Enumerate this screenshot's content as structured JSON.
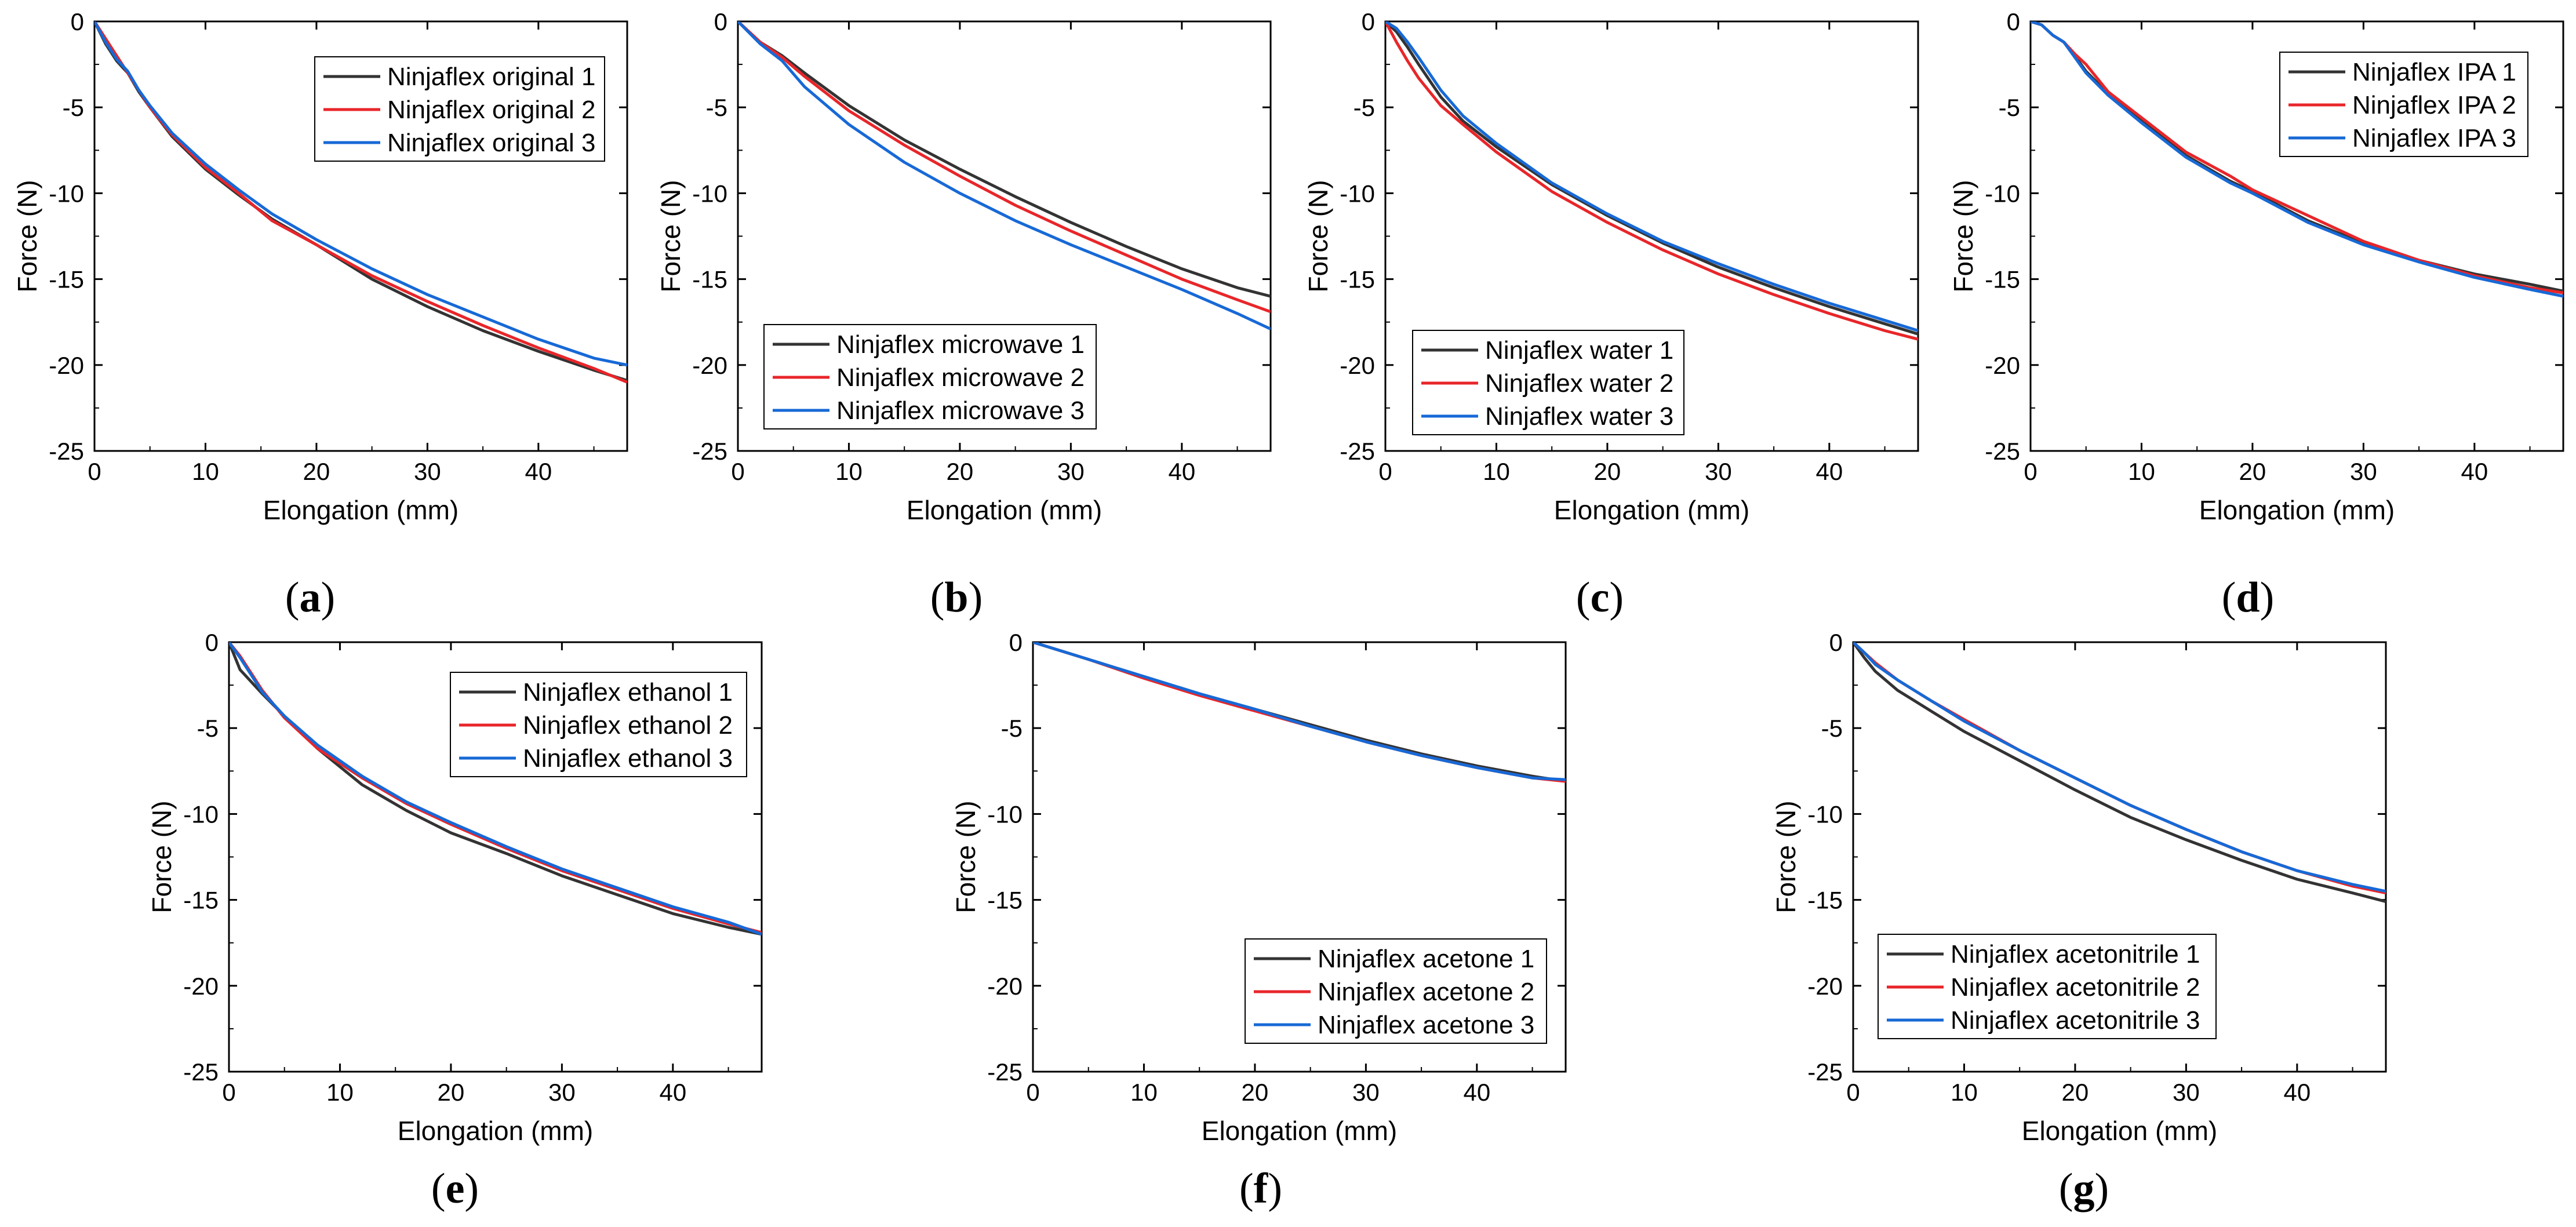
{
  "chart_data": [
    {
      "type": "line",
      "panel": "a",
      "xlabel": "Elongation (mm)",
      "ylabel": "Force (N)",
      "xlim": [
        0,
        48
      ],
      "ylim": [
        -25,
        0
      ],
      "xticks": [
        "0",
        "10",
        "20",
        "30",
        "40"
      ],
      "yticks": [
        "0",
        "-5",
        "-10",
        "-15",
        "-20",
        "-25"
      ],
      "series": [
        {
          "name": "Ninjaflex original 1",
          "color": "#333333",
          "x": [
            0,
            1,
            2,
            3,
            4,
            5,
            7,
            10,
            13,
            16,
            20,
            25,
            30,
            35,
            40,
            45,
            48
          ],
          "y": [
            0,
            -1.3,
            -2.3,
            -3.0,
            -4.1,
            -5.0,
            -6.7,
            -8.6,
            -10.1,
            -11.5,
            -13.0,
            -15.0,
            -16.6,
            -18.0,
            -19.2,
            -20.3,
            -20.9
          ]
        },
        {
          "name": "Ninjaflex original 2",
          "color": "#e8262a",
          "x": [
            0,
            1,
            2,
            3,
            4,
            5,
            7,
            10,
            13,
            16,
            20,
            25,
            30,
            35,
            40,
            45,
            48
          ],
          "y": [
            0,
            -1.0,
            -2.0,
            -3.0,
            -4.0,
            -5.0,
            -6.6,
            -8.5,
            -10.0,
            -11.6,
            -13.0,
            -14.8,
            -16.3,
            -17.7,
            -19.0,
            -20.2,
            -21.0
          ]
        },
        {
          "name": "Ninjaflex original 3",
          "color": "#1769d6",
          "x": [
            0,
            1,
            2,
            3,
            4,
            5,
            7,
            10,
            13,
            16,
            20,
            25,
            30,
            35,
            40,
            45,
            48
          ],
          "y": [
            0,
            -1.2,
            -2.2,
            -2.9,
            -4.0,
            -4.9,
            -6.5,
            -8.3,
            -9.8,
            -11.2,
            -12.7,
            -14.4,
            -15.9,
            -17.2,
            -18.5,
            -19.6,
            -20.0
          ]
        }
      ],
      "legend": "top-right"
    },
    {
      "type": "line",
      "panel": "b",
      "xlabel": "Elongation (mm)",
      "ylabel": "Force (N)",
      "xlim": [
        0,
        48
      ],
      "ylim": [
        -25,
        0
      ],
      "xticks": [
        "0",
        "10",
        "20",
        "30",
        "40"
      ],
      "yticks": [
        "0",
        "-5",
        "-10",
        "-15",
        "-20",
        "-25"
      ],
      "series": [
        {
          "name": "Ninjaflex microwave 1",
          "color": "#333333",
          "x": [
            0,
            2,
            4,
            6,
            10,
            15,
            20,
            25,
            30,
            35,
            40,
            45,
            48
          ],
          "y": [
            0,
            -1.2,
            -2.0,
            -3.0,
            -4.9,
            -6.9,
            -8.6,
            -10.2,
            -11.7,
            -13.1,
            -14.4,
            -15.5,
            -16.0
          ]
        },
        {
          "name": "Ninjaflex microwave 2",
          "color": "#e8262a",
          "x": [
            0,
            2,
            4,
            6,
            10,
            15,
            20,
            25,
            30,
            35,
            40,
            45,
            48
          ],
          "y": [
            0,
            -1.2,
            -2.1,
            -3.2,
            -5.2,
            -7.2,
            -9.0,
            -10.7,
            -12.2,
            -13.6,
            -15.0,
            -16.2,
            -16.9
          ]
        },
        {
          "name": "Ninjaflex microwave 3",
          "color": "#1769d6",
          "x": [
            0,
            2,
            4,
            6,
            10,
            15,
            20,
            25,
            30,
            35,
            40,
            45,
            48
          ],
          "y": [
            0,
            -1.3,
            -2.3,
            -3.8,
            -6.0,
            -8.2,
            -10.0,
            -11.6,
            -13.0,
            -14.3,
            -15.6,
            -17.0,
            -17.9
          ]
        }
      ],
      "legend": "bottom-left"
    },
    {
      "type": "line",
      "panel": "c",
      "xlabel": "Elongation (mm)",
      "ylabel": "Force (N)",
      "xlim": [
        0,
        48
      ],
      "ylim": [
        -25,
        0
      ],
      "xticks": [
        "0",
        "10",
        "20",
        "30",
        "40"
      ],
      "yticks": [
        "0",
        "-5",
        "-10",
        "-15",
        "-20",
        "-25"
      ],
      "series": [
        {
          "name": "Ninjaflex water 1",
          "color": "#333333",
          "x": [
            0,
            1,
            2,
            3,
            5,
            7,
            10,
            15,
            20,
            25,
            30,
            35,
            40,
            45,
            48
          ],
          "y": [
            0,
            -0.6,
            -1.5,
            -2.5,
            -4.4,
            -5.8,
            -7.3,
            -9.5,
            -11.3,
            -12.9,
            -14.3,
            -15.5,
            -16.6,
            -17.6,
            -18.2
          ]
        },
        {
          "name": "Ninjaflex water 2",
          "color": "#e8262a",
          "x": [
            0,
            1,
            2,
            3,
            5,
            7,
            10,
            15,
            20,
            25,
            30,
            35,
            40,
            45,
            48
          ],
          "y": [
            0,
            -1.2,
            -2.3,
            -3.3,
            -4.9,
            -6.0,
            -7.6,
            -9.9,
            -11.7,
            -13.3,
            -14.7,
            -15.9,
            -17.0,
            -18.0,
            -18.5
          ]
        },
        {
          "name": "Ninjaflex water 3",
          "color": "#1769d6",
          "x": [
            0,
            1,
            2,
            3,
            5,
            7,
            10,
            15,
            20,
            25,
            30,
            35,
            40,
            45,
            48
          ],
          "y": [
            0,
            -0.4,
            -1.2,
            -2.1,
            -4.0,
            -5.5,
            -7.1,
            -9.4,
            -11.2,
            -12.8,
            -14.1,
            -15.3,
            -16.4,
            -17.4,
            -18.0
          ]
        }
      ],
      "legend": "bottom-left"
    },
    {
      "type": "line",
      "panel": "d",
      "xlabel": "Elongation (mm)",
      "ylabel": "Force (N)",
      "xlim": [
        0,
        48
      ],
      "ylim": [
        -25,
        0
      ],
      "xticks": [
        "0",
        "10",
        "20",
        "30",
        "40"
      ],
      "yticks": [
        "0",
        "-5",
        "-10",
        "-15",
        "-20",
        "-25"
      ],
      "series": [
        {
          "name": "Ninjaflex IPA 1",
          "color": "#333333",
          "x": [
            0,
            1,
            2,
            3,
            4,
            5,
            7,
            10,
            14,
            18,
            20,
            25,
            30,
            35,
            40,
            45,
            48
          ],
          "y": [
            0,
            -0.2,
            -0.8,
            -1.2,
            -2.0,
            -2.9,
            -4.2,
            -5.8,
            -7.8,
            -9.3,
            -9.9,
            -11.6,
            -12.9,
            -13.9,
            -14.7,
            -15.3,
            -15.7
          ]
        },
        {
          "name": "Ninjaflex IPA 2",
          "color": "#e8262a",
          "x": [
            0,
            1,
            2,
            3,
            4,
            5,
            7,
            10,
            14,
            18,
            20,
            25,
            30,
            35,
            40,
            45,
            48
          ],
          "y": [
            0,
            -0.2,
            -0.8,
            -1.2,
            -1.9,
            -2.5,
            -4.1,
            -5.6,
            -7.6,
            -9.0,
            -9.8,
            -11.3,
            -12.8,
            -13.9,
            -14.8,
            -15.5,
            -15.8
          ]
        },
        {
          "name": "Ninjaflex IPA 3",
          "color": "#1769d6",
          "x": [
            0,
            1,
            2,
            3,
            4,
            5,
            7,
            10,
            14,
            18,
            20,
            25,
            30,
            35,
            40,
            45,
            48
          ],
          "y": [
            0,
            -0.2,
            -0.8,
            -1.2,
            -2.1,
            -3.0,
            -4.3,
            -5.9,
            -7.9,
            -9.4,
            -10.0,
            -11.7,
            -13.0,
            -14.0,
            -14.9,
            -15.6,
            -16.0
          ]
        }
      ],
      "legend": "top-right"
    },
    {
      "type": "line",
      "panel": "e",
      "xlabel": "Elongation (mm)",
      "ylabel": "Force (N)",
      "xlim": [
        0,
        48
      ],
      "ylim": [
        -25,
        0
      ],
      "xticks": [
        "0",
        "10",
        "20",
        "30",
        "40"
      ],
      "yticks": [
        "0",
        "-5",
        "-10",
        "-15",
        "-20",
        "-25"
      ],
      "series": [
        {
          "name": "Ninjaflex ethanol 1",
          "color": "#333333",
          "x": [
            0,
            1,
            2,
            3,
            5,
            8,
            12,
            16,
            20,
            25,
            30,
            35,
            40,
            45,
            48
          ],
          "y": [
            0,
            -1.6,
            -2.3,
            -3.0,
            -4.3,
            -6.2,
            -8.3,
            -9.8,
            -11.1,
            -12.3,
            -13.6,
            -14.7,
            -15.8,
            -16.6,
            -17.0
          ]
        },
        {
          "name": "Ninjaflex ethanol 2",
          "color": "#e8262a",
          "x": [
            0,
            1,
            2,
            3,
            5,
            8,
            12,
            16,
            20,
            25,
            30,
            35,
            40,
            45,
            48
          ],
          "y": [
            0,
            -0.8,
            -1.8,
            -2.8,
            -4.4,
            -6.2,
            -7.9,
            -9.4,
            -10.6,
            -12.0,
            -13.3,
            -14.4,
            -15.5,
            -16.4,
            -16.9
          ]
        },
        {
          "name": "Ninjaflex ethanol 3",
          "color": "#1769d6",
          "x": [
            0,
            1,
            2,
            3,
            5,
            8,
            12,
            16,
            20,
            25,
            30,
            35,
            40,
            45,
            48
          ],
          "y": [
            0,
            -0.9,
            -1.9,
            -2.9,
            -4.3,
            -6.0,
            -7.8,
            -9.3,
            -10.5,
            -11.9,
            -13.2,
            -14.3,
            -15.4,
            -16.3,
            -17.0
          ]
        }
      ],
      "legend": "top-right"
    },
    {
      "type": "line",
      "panel": "f",
      "xlabel": "Elongation (mm)",
      "ylabel": "Force (N)",
      "xlim": [
        0,
        48
      ],
      "ylim": [
        -25,
        0
      ],
      "xticks": [
        "0",
        "10",
        "20",
        "30",
        "40"
      ],
      "yticks": [
        "0",
        "-5",
        "-10",
        "-15",
        "-20",
        "-25"
      ],
      "series": [
        {
          "name": "Ninjaflex acetone 1",
          "color": "#333333",
          "x": [
            0,
            5,
            10,
            15,
            20,
            25,
            30,
            35,
            40,
            45,
            48
          ],
          "y": [
            0,
            -1.0,
            -2.0,
            -3.0,
            -3.9,
            -4.8,
            -5.7,
            -6.5,
            -7.2,
            -7.8,
            -8.1
          ]
        },
        {
          "name": "Ninjaflex acetone 2",
          "color": "#e8262a",
          "x": [
            0,
            5,
            10,
            15,
            20,
            25,
            30,
            35,
            40,
            45,
            48
          ],
          "y": [
            0,
            -1.0,
            -2.1,
            -3.1,
            -4.0,
            -4.9,
            -5.8,
            -6.6,
            -7.3,
            -7.9,
            -8.1
          ]
        },
        {
          "name": "Ninjaflex acetone 3",
          "color": "#1769d6",
          "x": [
            0,
            5,
            10,
            15,
            20,
            25,
            30,
            35,
            40,
            45,
            48
          ],
          "y": [
            0,
            -1.0,
            -2.0,
            -3.0,
            -3.9,
            -4.9,
            -5.8,
            -6.6,
            -7.3,
            -7.9,
            -8.0
          ]
        }
      ],
      "legend": "bottom-right"
    },
    {
      "type": "line",
      "panel": "g",
      "xlabel": "Elongation (mm)",
      "ylabel": "Force (N)",
      "xlim": [
        0,
        48
      ],
      "ylim": [
        -25,
        0
      ],
      "xticks": [
        "0",
        "10",
        "20",
        "30",
        "40"
      ],
      "yticks": [
        "0",
        "-5",
        "-10",
        "-15",
        "-20",
        "-25"
      ],
      "series": [
        {
          "name": "Ninjaflex acetonitrile 1",
          "color": "#333333",
          "x": [
            0,
            1,
            2,
            4,
            7,
            10,
            15,
            20,
            25,
            30,
            35,
            40,
            45,
            48
          ],
          "y": [
            0,
            -0.9,
            -1.7,
            -2.8,
            -4.0,
            -5.2,
            -6.9,
            -8.6,
            -10.2,
            -11.5,
            -12.7,
            -13.8,
            -14.6,
            -15.1
          ]
        },
        {
          "name": "Ninjaflex acetonitrile 2",
          "color": "#e8262a",
          "x": [
            0,
            1,
            2,
            4,
            7,
            10,
            15,
            20,
            25,
            30,
            35,
            40,
            45,
            48
          ],
          "y": [
            0,
            -0.6,
            -1.2,
            -2.2,
            -3.4,
            -4.5,
            -6.3,
            -7.9,
            -9.5,
            -10.9,
            -12.2,
            -13.3,
            -14.2,
            -14.6
          ]
        },
        {
          "name": "Ninjaflex acetonitrile 3",
          "color": "#1769d6",
          "x": [
            0,
            1,
            2,
            4,
            7,
            10,
            15,
            20,
            25,
            30,
            35,
            40,
            45,
            48
          ],
          "y": [
            0,
            -0.6,
            -1.3,
            -2.2,
            -3.4,
            -4.6,
            -6.3,
            -7.9,
            -9.5,
            -10.9,
            -12.2,
            -13.3,
            -14.1,
            -14.5
          ]
        }
      ],
      "legend": "bottom-left"
    }
  ],
  "panel_labels": [
    {
      "open": "(",
      "letter": "a",
      "close": ")"
    },
    {
      "open": "(",
      "letter": "b",
      "close": ")"
    },
    {
      "open": "(",
      "letter": "c",
      "close": ")"
    },
    {
      "open": "(",
      "letter": "d",
      "close": ")"
    },
    {
      "open": "(",
      "letter": "e",
      "close": ")"
    },
    {
      "open": "(",
      "letter": "f",
      "close": ")"
    },
    {
      "open": "(",
      "letter": "g",
      "close": ")"
    }
  ]
}
